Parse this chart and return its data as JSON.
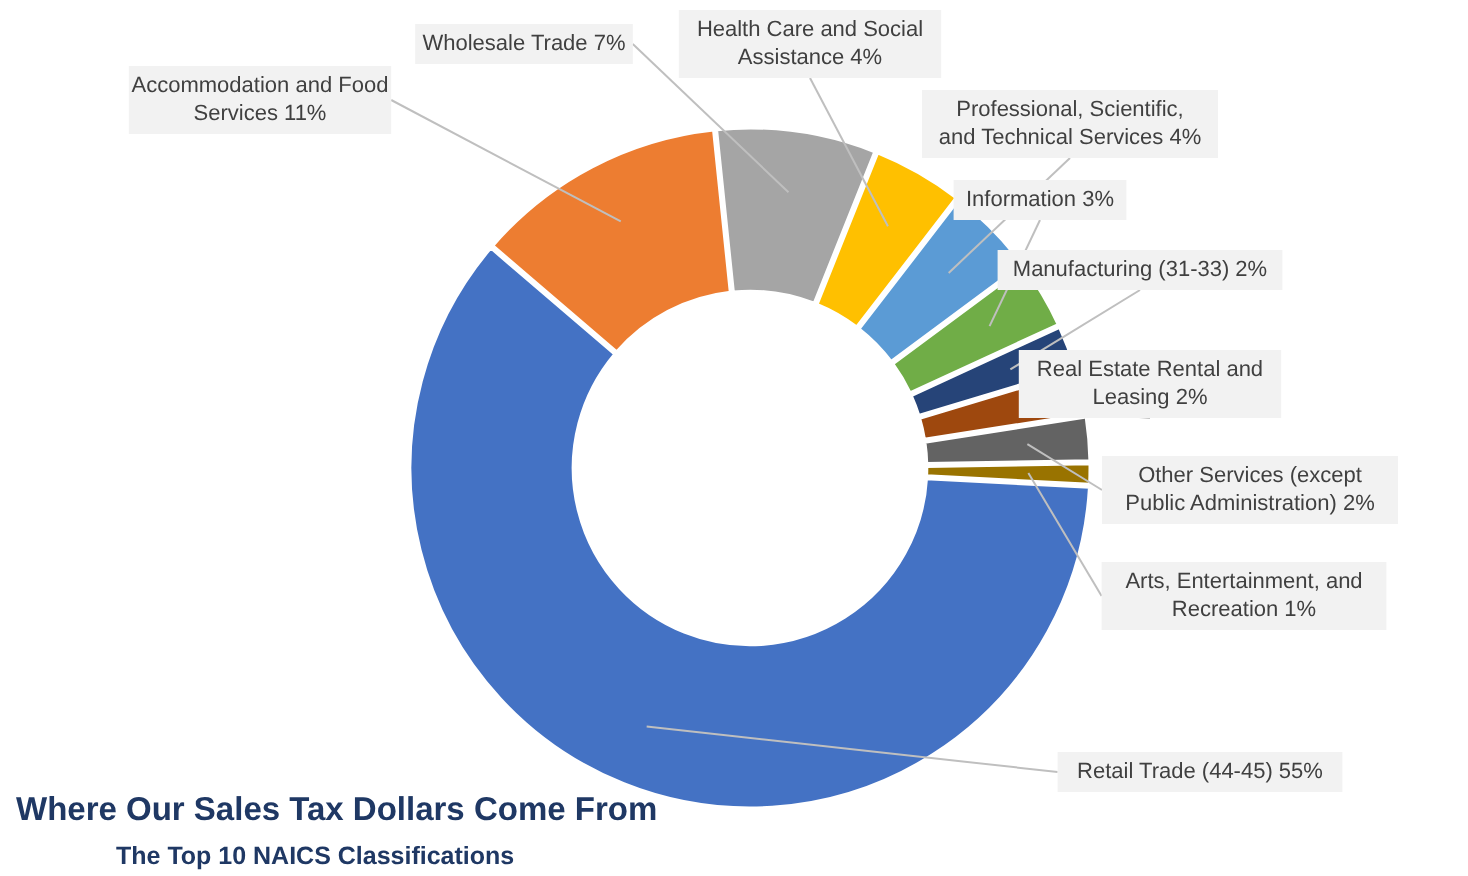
{
  "chart_data": {
    "type": "donut",
    "title": "Where Our Sales Tax Dollars Come From",
    "subtitle": "The Top 10 NAICS  Classifications",
    "categories": [
      "Retail Trade (44-45)",
      "Accommodation and Food Services",
      "Wholesale Trade",
      "Health Care and Social Assistance",
      "Professional, Scientific, and Technical Services",
      "Information",
      "Manufacturing (31-33)",
      "Real Estate Rental and Leasing",
      "Other Services (except Public Administration)",
      "Arts, Entertainment, and Recreation"
    ],
    "values": [
      55,
      11,
      7,
      4,
      4,
      3,
      2,
      2,
      2,
      1
    ],
    "value_labels": [
      "55%",
      "11%",
      "7%",
      "4%",
      "4%",
      "3%",
      "2%",
      "2%",
      "2%",
      "1%"
    ],
    "colors": [
      "#4472c4",
      "#ed7d31",
      "#a5a5a5",
      "#ffc000",
      "#5b9bd5",
      "#70ad47",
      "#264478",
      "#9e480e",
      "#636363",
      "#997300"
    ]
  }
}
